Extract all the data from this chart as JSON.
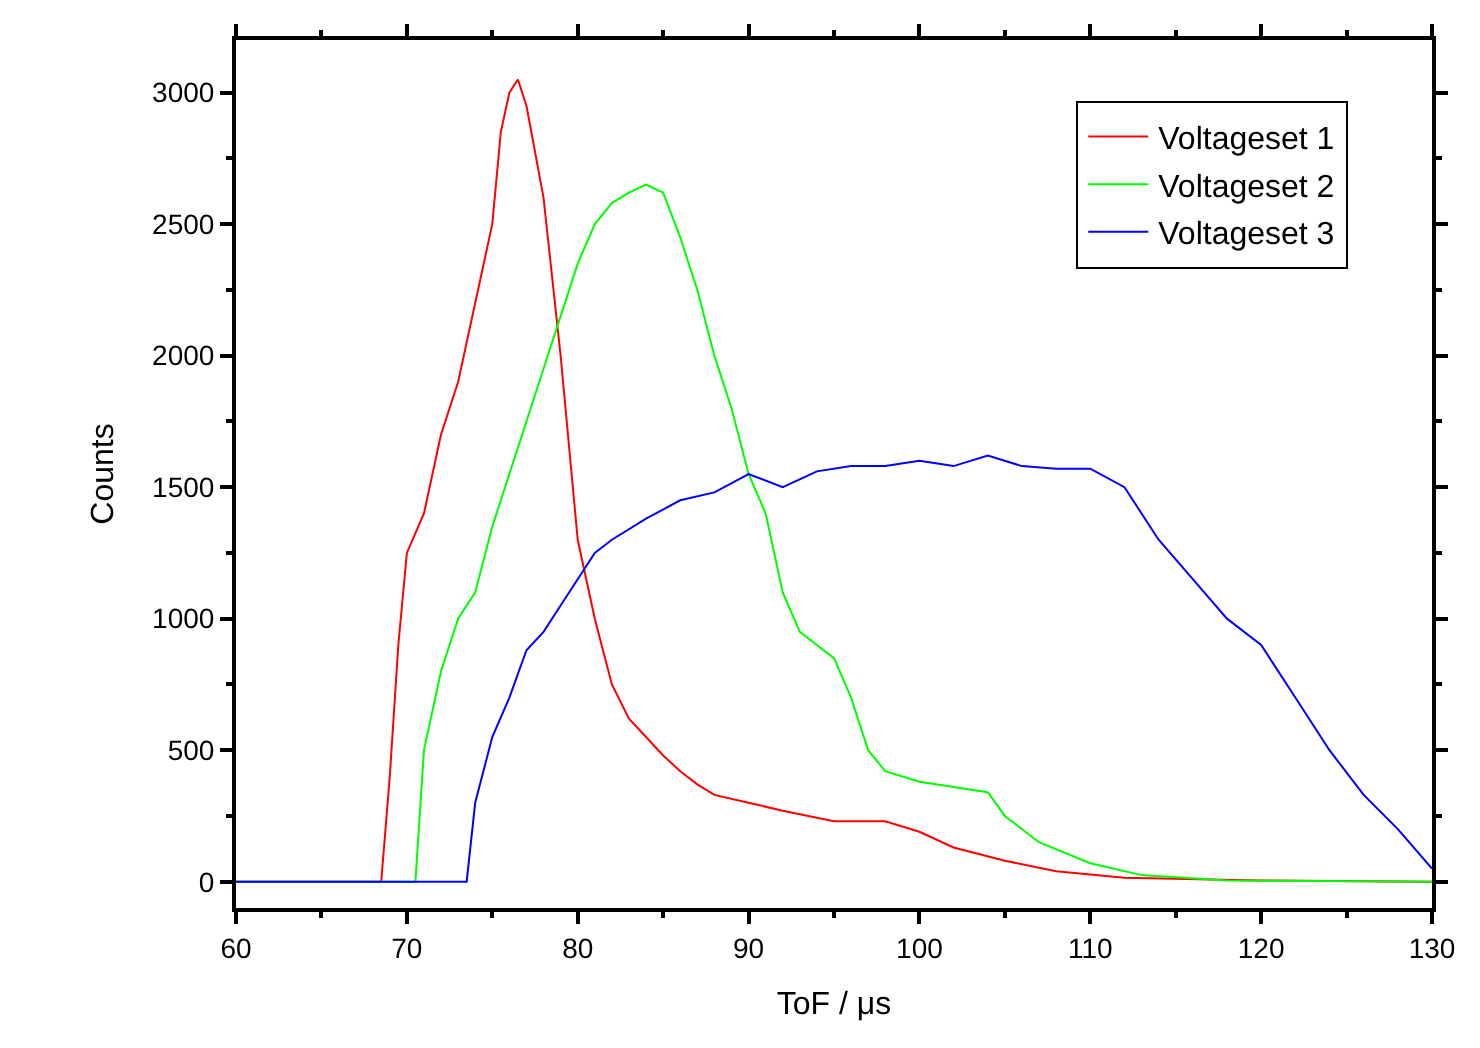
{
  "chart_data": {
    "type": "line",
    "xlabel": "ToF / μs",
    "ylabel": "Counts",
    "xlim": [
      60,
      130
    ],
    "xticks": [
      60,
      70,
      80,
      90,
      100,
      110,
      120,
      130
    ],
    "ylim": [
      -100,
      3200
    ],
    "yticks": [
      0,
      500,
      1000,
      1500,
      2000,
      2500,
      3000
    ],
    "legend": "top right",
    "marker": "none",
    "line_style": "solid",
    "series": [
      {
        "name": "Voltageset 1",
        "color": "#ff0000",
        "x": [
          60,
          68.5,
          69,
          69.5,
          70,
          71,
          72,
          73,
          74,
          75,
          75.5,
          76,
          76.5,
          77,
          78,
          79,
          80,
          81,
          82,
          83,
          84,
          85,
          86,
          87,
          88,
          90,
          92,
          95,
          98,
          100,
          102,
          105,
          108,
          112,
          120,
          130
        ],
        "values": [
          0,
          0,
          400,
          900,
          1250,
          1400,
          1700,
          1900,
          2200,
          2500,
          2850,
          3000,
          3050,
          2950,
          2600,
          2000,
          1300,
          1000,
          750,
          620,
          550,
          480,
          420,
          370,
          330,
          300,
          270,
          230,
          230,
          190,
          130,
          80,
          40,
          15,
          5,
          0
        ]
      },
      {
        "name": "Voltageset 2",
        "color": "#00ff00",
        "x": [
          60,
          70.5,
          71,
          72,
          73,
          74,
          75,
          76,
          77,
          78,
          79,
          80,
          81,
          82,
          83,
          84,
          85,
          86,
          87,
          88,
          89,
          90,
          91,
          92,
          93,
          94,
          95,
          96,
          97,
          98,
          100,
          102,
          104,
          105,
          107,
          110,
          113,
          118,
          130
        ],
        "values": [
          0,
          0,
          500,
          800,
          1000,
          1100,
          1350,
          1550,
          1750,
          1950,
          2150,
          2350,
          2500,
          2580,
          2620,
          2650,
          2620,
          2450,
          2250,
          2000,
          1800,
          1550,
          1400,
          1100,
          950,
          900,
          850,
          700,
          500,
          420,
          380,
          360,
          340,
          250,
          150,
          70,
          25,
          5,
          0
        ]
      },
      {
        "name": "Voltageset 3",
        "color": "#0000ff",
        "x": [
          60,
          73.5,
          74,
          75,
          76,
          77,
          78,
          79,
          80,
          81,
          82,
          84,
          86,
          88,
          90,
          92,
          94,
          96,
          98,
          100,
          102,
          104,
          106,
          108,
          110,
          112,
          114,
          116,
          118,
          120,
          122,
          124,
          126,
          128,
          130
        ],
        "values": [
          0,
          0,
          300,
          550,
          700,
          880,
          950,
          1050,
          1150,
          1250,
          1300,
          1380,
          1450,
          1480,
          1550,
          1500,
          1560,
          1580,
          1580,
          1600,
          1580,
          1620,
          1580,
          1570,
          1570,
          1500,
          1300,
          1150,
          1000,
          900,
          700,
          500,
          330,
          200,
          50
        ]
      }
    ]
  }
}
